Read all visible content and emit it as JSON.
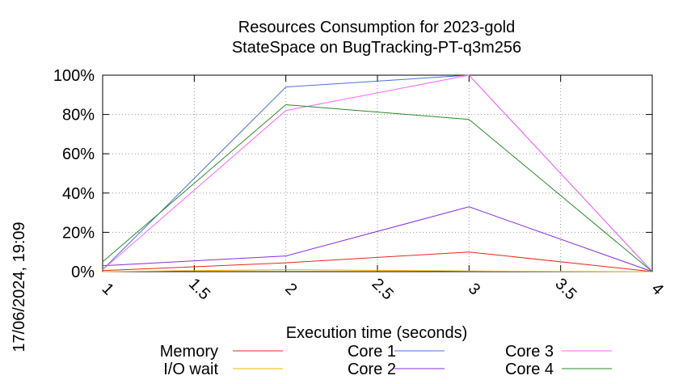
{
  "chart_data": {
    "type": "line",
    "title": "Resources Consumption for 2023-gold",
    "subtitle": "StateSpace on BugTracking-PT-q3m256",
    "xlabel": "Execution time (seconds)",
    "ylabel": "",
    "side_label": "17/06/2024, 19:09",
    "xlim": [
      1,
      4
    ],
    "ylim": [
      0,
      100
    ],
    "x_ticks": [
      "1",
      "1.5",
      "2",
      "2.5",
      "3",
      "3.5",
      "4"
    ],
    "y_ticks": [
      "0%",
      "20%",
      "40%",
      "60%",
      "80%",
      "100%"
    ],
    "grid": true,
    "legend_position": "bottom",
    "x": [
      1,
      2,
      3,
      4
    ],
    "series": [
      {
        "name": "Memory",
        "color": "#e8271a",
        "values": [
          0.5,
          4.5,
          10,
          0
        ]
      },
      {
        "name": "I/O wait",
        "color": "#f2b400",
        "values": [
          0,
          1,
          0.3,
          0
        ]
      },
      {
        "name": "Core 1",
        "color": "#4a72d6",
        "values": [
          1,
          94,
          100,
          0
        ]
      },
      {
        "name": "Core 2",
        "color": "#8a2be2",
        "values": [
          3,
          8,
          33,
          0
        ]
      },
      {
        "name": "Core 3",
        "color": "#ff66ff",
        "values": [
          1,
          82,
          100,
          0
        ]
      },
      {
        "name": "Core 4",
        "color": "#2a8a2a",
        "values": [
          5,
          85,
          77.5,
          0
        ]
      }
    ]
  }
}
